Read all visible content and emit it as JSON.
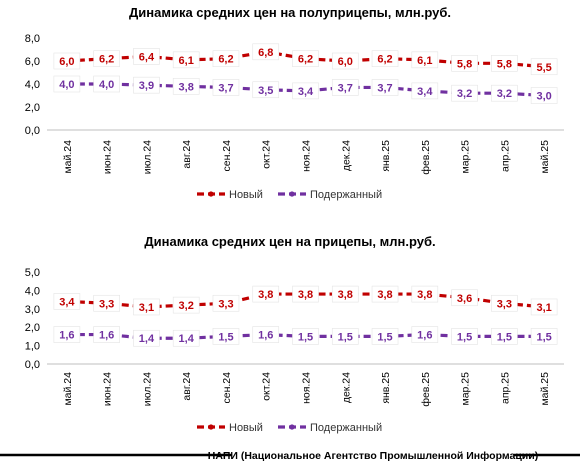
{
  "chart_data": [
    {
      "type": "line",
      "title": "Динамика средних цен на полуприцепы, млн.руб.",
      "categories": [
        "май.24",
        "июн.24",
        "июл.24",
        "авг.24",
        "сен.24",
        "окт.24",
        "ноя.24",
        "дек.24",
        "янв.25",
        "фев.25",
        "мар.25",
        "апр.25",
        "май.25"
      ],
      "y_ticks": [
        "0,0",
        "2,0",
        "4,0",
        "6,0",
        "8,0"
      ],
      "ylim": [
        0,
        8
      ],
      "series": [
        {
          "name": "Новый",
          "color": "#c00000",
          "values": [
            6.0,
            6.2,
            6.4,
            6.1,
            6.2,
            6.8,
            6.2,
            6.0,
            6.2,
            6.1,
            5.8,
            5.8,
            5.5
          ],
          "labels": [
            "6,0",
            "6,2",
            "6,4",
            "6,1",
            "6,2",
            "6,8",
            "6,2",
            "6,0",
            "6,2",
            "6,1",
            "5,8",
            "5,8",
            "5,5"
          ]
        },
        {
          "name": "Подержанный",
          "color": "#7030a0",
          "values": [
            4.0,
            4.0,
            3.9,
            3.8,
            3.7,
            3.5,
            3.4,
            3.7,
            3.7,
            3.4,
            3.2,
            3.2,
            3.0
          ],
          "labels": [
            "4,0",
            "4,0",
            "3,9",
            "3,8",
            "3,7",
            "3,5",
            "3,4",
            "3,7",
            "3,7",
            "3,4",
            "3,2",
            "3,2",
            "3,0"
          ]
        }
      ],
      "grid": false,
      "legend": "bottom"
    },
    {
      "type": "line",
      "title": "Динамика средних цен на прицепы, млн.руб.",
      "categories": [
        "май.24",
        "июн.24",
        "июл.24",
        "авг.24",
        "сен.24",
        "окт.24",
        "ноя.24",
        "дек.24",
        "янв.25",
        "фев.25",
        "мар.25",
        "апр.25",
        "май.25"
      ],
      "y_ticks": [
        "0,0",
        "1,0",
        "2,0",
        "3,0",
        "4,0",
        "5,0"
      ],
      "ylim": [
        0,
        5
      ],
      "series": [
        {
          "name": "Новый",
          "color": "#c00000",
          "values": [
            3.4,
            3.3,
            3.1,
            3.2,
            3.3,
            3.8,
            3.8,
            3.8,
            3.8,
            3.8,
            3.6,
            3.3,
            3.1
          ],
          "labels": [
            "3,4",
            "3,3",
            "3,1",
            "3,2",
            "3,3",
            "3,8",
            "3,8",
            "3,8",
            "3,8",
            "3,8",
            "3,6",
            "3,3",
            "3,1"
          ]
        },
        {
          "name": "Подержанный",
          "color": "#7030a0",
          "values": [
            1.6,
            1.6,
            1.4,
            1.4,
            1.5,
            1.6,
            1.5,
            1.5,
            1.5,
            1.6,
            1.5,
            1.5,
            1.5
          ],
          "labels": [
            "1,6",
            "1,6",
            "1,4",
            "1,4",
            "1,5",
            "1,6",
            "1,5",
            "1,5",
            "1,5",
            "1,6",
            "1,5",
            "1,5",
            "1,5"
          ]
        }
      ],
      "grid": false,
      "legend": "bottom"
    }
  ],
  "footer": "НАПИ (Национальное Агентство Промышленной Информации)"
}
